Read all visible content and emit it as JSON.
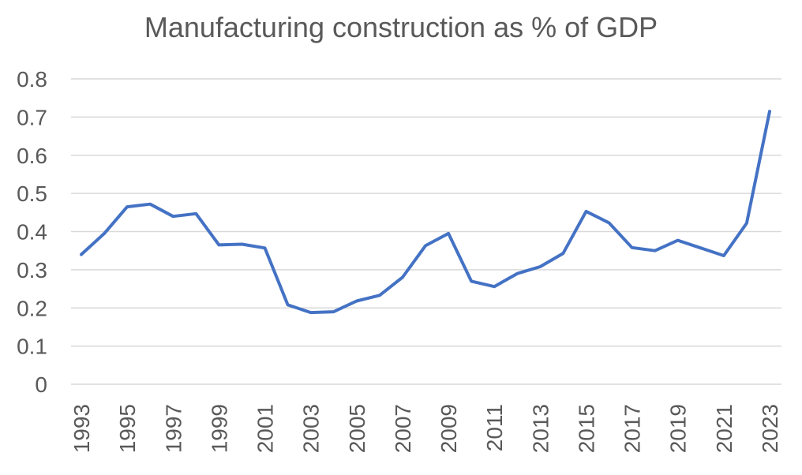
{
  "chart_data": {
    "type": "line",
    "title": "Manufacturing construction as % of GDP",
    "xlabel": "",
    "ylabel": "",
    "ylim": [
      0,
      0.8
    ],
    "yticks": [
      "0",
      "0.1",
      "0.2",
      "0.3",
      "0.4",
      "0.5",
      "0.6",
      "0.7",
      "0.8"
    ],
    "xticks": [
      "1993",
      "1995",
      "1997",
      "1999",
      "2001",
      "2003",
      "2005",
      "2007",
      "2009",
      "2011",
      "2013",
      "2015",
      "2017",
      "2019",
      "2021",
      "2023"
    ],
    "grid": true,
    "legend": "none",
    "series_color": "#4472C4",
    "x": [
      1993,
      1994,
      1995,
      1996,
      1997,
      1998,
      1999,
      2000,
      2001,
      2002,
      2003,
      2004,
      2005,
      2006,
      2007,
      2008,
      2009,
      2010,
      2011,
      2012,
      2013,
      2014,
      2015,
      2016,
      2017,
      2018,
      2019,
      2020,
      2021,
      2022,
      2023
    ],
    "series": [
      {
        "values": [
          0.34,
          0.395,
          0.465,
          0.472,
          0.44,
          0.447,
          0.365,
          0.367,
          0.357,
          0.208,
          0.188,
          0.19,
          0.218,
          0.233,
          0.28,
          0.363,
          0.395,
          0.27,
          0.256,
          0.29,
          0.308,
          0.343,
          0.453,
          0.423,
          0.358,
          0.35,
          0.377,
          0.357,
          0.337,
          0.422,
          0.715
        ]
      }
    ]
  }
}
